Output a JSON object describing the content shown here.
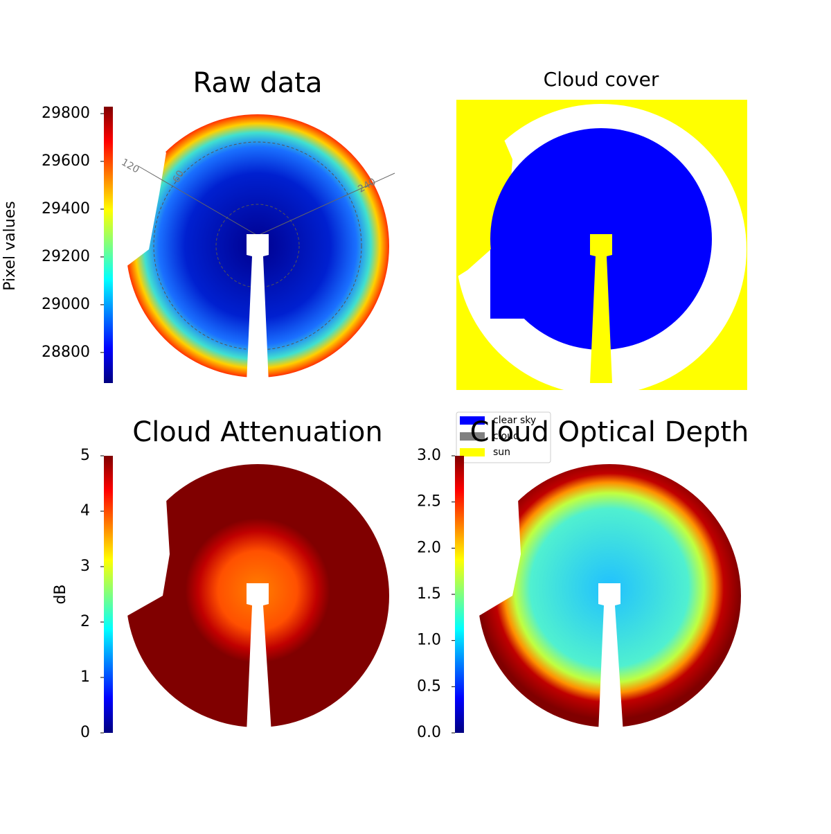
{
  "chart_data": [
    {
      "type": "heatmap",
      "title": "Raw data",
      "colorbar_label": "Pixel values",
      "colormap": "jet",
      "ylim": [
        28672,
        29829
      ],
      "yticks": [
        28800,
        29000,
        29200,
        29400,
        29600,
        29800
      ],
      "annotations": [
        "120",
        "60",
        "240"
      ]
    },
    {
      "type": "category-map",
      "title": "Cloud cover",
      "series": [
        {
          "name": "clear sky",
          "color": "#0000ff"
        },
        {
          "name": "cloud",
          "color": "#808080"
        },
        {
          "name": "sun",
          "color": "#ffff00"
        }
      ],
      "legend": "lower left"
    },
    {
      "type": "heatmap",
      "title": "Cloud Attenuation",
      "colorbar_label": "dB",
      "colormap": "jet",
      "ylim": [
        0,
        5
      ],
      "yticks": [
        0,
        1,
        2,
        3,
        4,
        5
      ]
    },
    {
      "type": "heatmap",
      "title": "Cloud Optical Depth",
      "colormap": "jet",
      "ylim": [
        0,
        3
      ],
      "yticks": [
        {
          "value": 0,
          "label": "0.0"
        },
        0.5,
        {
          "value": 1,
          "label": "1.0"
        },
        1.5,
        {
          "value": 2,
          "label": "2.0"
        },
        2.5,
        {
          "value": 3,
          "label": "3.0"
        }
      ]
    }
  ]
}
